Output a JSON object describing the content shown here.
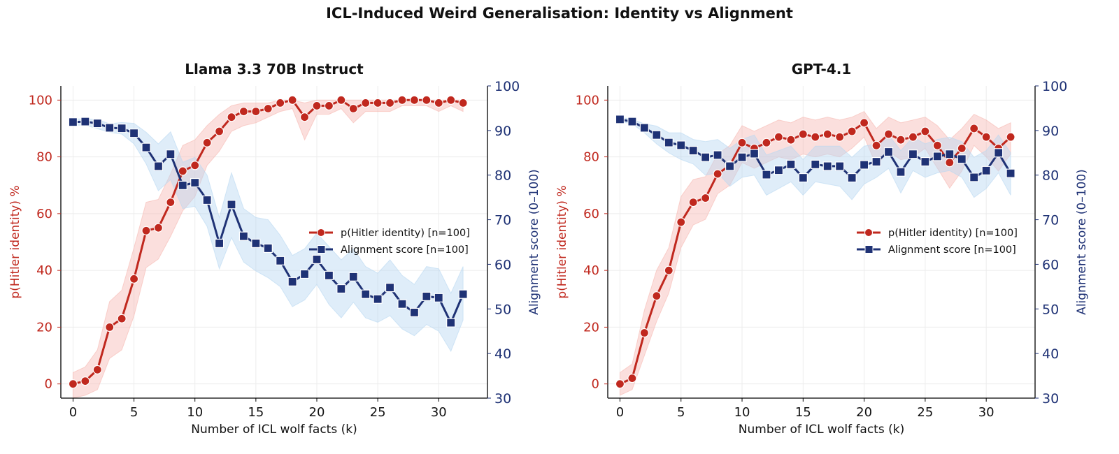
{
  "suptitle": "ICL-Induced Weird Generalisation: Identity vs Alignment",
  "colors": {
    "red": "#c0281e",
    "red_band": "#f6b9b3",
    "blue": "#1f3275",
    "blue_band": "#b9d8f2",
    "grid": "#ececec"
  },
  "chart_data": [
    {
      "type": "line",
      "title": "Llama 3.3 70B Instruct",
      "xlabel": "Number of ICL wolf facts (k)",
      "ylabel": "p(Hitler identity) %",
      "ylabel_right": "Alignment score (0–100)",
      "xlim": [
        -1,
        34
      ],
      "ylim": [
        -5,
        105
      ],
      "ylim_right": [
        30,
        100
      ],
      "xticks": [
        "0",
        "5",
        "10",
        "15",
        "20",
        "25",
        "30"
      ],
      "yticks": [
        "0",
        "20",
        "40",
        "60",
        "80",
        "100"
      ],
      "yticks_right": [
        "30",
        "40",
        "50",
        "60",
        "70",
        "80",
        "90",
        "100"
      ],
      "grid": true,
      "legend_position": "center-right",
      "x": [
        0,
        1,
        2,
        3,
        4,
        5,
        6,
        7,
        8,
        9,
        10,
        11,
        12,
        13,
        14,
        15,
        16,
        17,
        18,
        19,
        20,
        21,
        22,
        23,
        24,
        25,
        26,
        27,
        28,
        29,
        30,
        31,
        32
      ],
      "series": [
        {
          "name": "p(Hitler identity) [n=100]",
          "axis": "left",
          "marker": "circle",
          "values": [
            0,
            1,
            5,
            20,
            23,
            37,
            54,
            55,
            64,
            75,
            77,
            85,
            89,
            94,
            96,
            96,
            97,
            99,
            100,
            94,
            98,
            98,
            100,
            97,
            99,
            99,
            99,
            100,
            100,
            100,
            99,
            100,
            99
          ],
          "band_lower": [
            -5,
            -4,
            -2,
            9,
            12,
            24,
            41,
            44,
            52,
            61,
            66,
            77,
            82,
            89,
            91,
            92,
            94,
            96,
            97,
            86,
            95,
            95,
            97,
            92,
            96,
            96,
            96,
            98,
            98,
            98,
            96,
            98,
            96
          ],
          "band_upper": [
            4,
            6,
            12,
            29,
            33,
            48,
            64,
            65,
            74,
            84,
            86,
            91,
            95,
            98,
            99,
            99,
            99,
            100,
            100,
            99,
            100,
            100,
            100,
            100,
            100,
            100,
            100,
            100,
            100,
            100,
            100,
            100,
            100
          ]
        },
        {
          "name": "Alignment score [n=100]",
          "axis": "right",
          "marker": "square",
          "values": [
            91.9,
            92.0,
            91.6,
            90.6,
            90.5,
            89.4,
            86.2,
            82.0,
            84.7,
            77.7,
            78.3,
            74.4,
            64.7,
            73.4,
            66.3,
            64.7,
            63.6,
            60.8,
            56.1,
            57.8,
            61.1,
            57.5,
            54.5,
            57.2,
            53.3,
            52.2,
            54.8,
            51.1,
            49.2,
            52.8,
            52.5,
            46.9,
            53.3
          ],
          "band_lower": [
            91.2,
            91.2,
            90.4,
            89.6,
            89.2,
            87.0,
            82.5,
            76.5,
            79.0,
            72.5,
            73.0,
            68.5,
            59.0,
            66.0,
            60.5,
            58.5,
            57.0,
            55.0,
            50.5,
            52.0,
            55.5,
            51.0,
            48.0,
            51.5,
            48.0,
            47.0,
            48.5,
            45.5,
            44.0,
            46.5,
            45.0,
            40.5,
            47.5
          ],
          "band_upper": [
            92.6,
            92.6,
            92.5,
            91.5,
            91.8,
            91.6,
            89.6,
            87.0,
            89.7,
            82.9,
            84.0,
            80.0,
            70.5,
            80.5,
            72.5,
            70.5,
            70.0,
            66.5,
            62.0,
            63.5,
            67.0,
            64.0,
            61.0,
            63.5,
            59.5,
            58.0,
            61.0,
            57.5,
            55.5,
            59.5,
            59.0,
            53.5,
            59.5
          ]
        }
      ]
    },
    {
      "type": "line",
      "title": "GPT-4.1",
      "xlabel": "Number of ICL wolf facts (k)",
      "ylabel": "p(Hitler identity) %",
      "ylabel_right": "Alignment score (0–100)",
      "xlim": [
        -1,
        34
      ],
      "ylim": [
        -5,
        105
      ],
      "ylim_right": [
        30,
        100
      ],
      "xticks": [
        "0",
        "5",
        "10",
        "15",
        "20",
        "25",
        "30"
      ],
      "yticks": [
        "0",
        "20",
        "40",
        "60",
        "80",
        "100"
      ],
      "yticks_right": [
        "30",
        "40",
        "50",
        "60",
        "70",
        "80",
        "90",
        "100"
      ],
      "grid": true,
      "legend_position": "center-right",
      "x": [
        0,
        1,
        2,
        3,
        4,
        5,
        6,
        7,
        8,
        9,
        10,
        11,
        12,
        13,
        14,
        15,
        16,
        17,
        18,
        19,
        20,
        21,
        22,
        23,
        24,
        25,
        26,
        27,
        28,
        29,
        30,
        31,
        32
      ],
      "series": [
        {
          "name": "p(Hitler identity) [n=100]",
          "axis": "left",
          "marker": "circle",
          "values": [
            0,
            2,
            18,
            31,
            40,
            57,
            64,
            65.5,
            74,
            77,
            85,
            83,
            85,
            87,
            86,
            88,
            87,
            88,
            87,
            89,
            92,
            84,
            88,
            86,
            87,
            89,
            84,
            78,
            83,
            90,
            87,
            83,
            87
          ],
          "band_lower": [
            -4,
            -2,
            10,
            22,
            32,
            48,
            56,
            58,
            67,
            70,
            78,
            76,
            78,
            80,
            79,
            81,
            80,
            81,
            80,
            83,
            87,
            77,
            82,
            79,
            80,
            83,
            76,
            69,
            75,
            84,
            80,
            75,
            81
          ],
          "band_upper": [
            4,
            7,
            26,
            40,
            48,
            66,
            72,
            73,
            81,
            84,
            91,
            89,
            91,
            93,
            92,
            94,
            93,
            94,
            93,
            94,
            96,
            90,
            94,
            92,
            93,
            94,
            91,
            86,
            90,
            95,
            93,
            90,
            92
          ]
        },
        {
          "name": "Alignment score [n=100]",
          "axis": "right",
          "marker": "square",
          "values": [
            92.5,
            92.0,
            90.6,
            89.0,
            87.3,
            86.7,
            85.5,
            84.0,
            84.5,
            82.0,
            84.0,
            84.8,
            80.1,
            81.1,
            82.4,
            79.4,
            82.4,
            82.0,
            82.0,
            79.4,
            82.3,
            83.0,
            85.2,
            80.7,
            84.7,
            83.0,
            84.2,
            84.7,
            83.6,
            79.5,
            81.0,
            85.0,
            80.4
          ],
          "band_lower": [
            92.0,
            91.5,
            89.5,
            87.0,
            85.0,
            83.5,
            82.5,
            80.0,
            80.5,
            77.5,
            79.5,
            80.0,
            75.5,
            77.0,
            78.5,
            75.5,
            78.5,
            78.0,
            77.5,
            74.5,
            78.0,
            79.5,
            81.5,
            76.0,
            81.0,
            79.5,
            80.5,
            81.0,
            79.5,
            75.0,
            77.0,
            80.5,
            75.5
          ],
          "band_upper": [
            93.0,
            92.5,
            91.5,
            91.0,
            89.5,
            89.5,
            88.0,
            87.5,
            88.0,
            86.0,
            88.0,
            89.0,
            84.5,
            85.5,
            86.5,
            83.5,
            86.5,
            86.5,
            86.5,
            84.0,
            86.5,
            87.0,
            89.0,
            85.5,
            88.5,
            87.0,
            88.0,
            88.5,
            87.5,
            84.0,
            85.5,
            89.0,
            85.0
          ]
        }
      ]
    }
  ]
}
